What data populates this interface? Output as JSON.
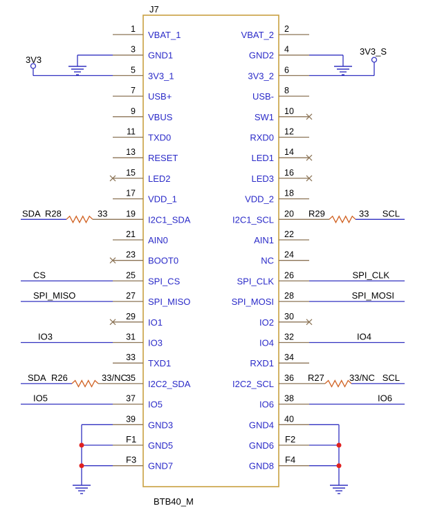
{
  "component": {
    "ref": "J7",
    "value": "BTB40_M",
    "left_pins": [
      {
        "num": "1",
        "name": "VBAT_1"
      },
      {
        "num": "3",
        "name": "GND1"
      },
      {
        "num": "5",
        "name": "3V3_1"
      },
      {
        "num": "7",
        "name": "USB+"
      },
      {
        "num": "9",
        "name": "VBUS"
      },
      {
        "num": "11",
        "name": "TXD0"
      },
      {
        "num": "13",
        "name": "RESET"
      },
      {
        "num": "15",
        "name": "LED2"
      },
      {
        "num": "17",
        "name": "VDD_1"
      },
      {
        "num": "19",
        "name": "I2C1_SDA"
      },
      {
        "num": "21",
        "name": "AIN0"
      },
      {
        "num": "23",
        "name": "BOOT0"
      },
      {
        "num": "25",
        "name": "SPI_CS"
      },
      {
        "num": "27",
        "name": "SPI_MISO"
      },
      {
        "num": "29",
        "name": "IO1"
      },
      {
        "num": "31",
        "name": "IO3"
      },
      {
        "num": "33",
        "name": "TXD1"
      },
      {
        "num": "35",
        "name": "I2C2_SDA"
      },
      {
        "num": "37",
        "name": "IO5"
      },
      {
        "num": "39",
        "name": "GND3"
      },
      {
        "num": "",
        "name": "GND5"
      },
      {
        "num": "",
        "name": "GND7"
      }
    ],
    "right_pins": [
      {
        "num": "2",
        "name": "VBAT_2"
      },
      {
        "num": "4",
        "name": "GND2"
      },
      {
        "num": "6",
        "name": "3V3_2"
      },
      {
        "num": "8",
        "name": "USB-"
      },
      {
        "num": "10",
        "name": "SW1"
      },
      {
        "num": "12",
        "name": "RXD0"
      },
      {
        "num": "14",
        "name": "LED1"
      },
      {
        "num": "16",
        "name": "LED3"
      },
      {
        "num": "18",
        "name": "VDD_2"
      },
      {
        "num": "20",
        "name": "I2C1_SCL"
      },
      {
        "num": "22",
        "name": "AIN1"
      },
      {
        "num": "24",
        "name": "NC"
      },
      {
        "num": "26",
        "name": "SPI_CLK"
      },
      {
        "num": "28",
        "name": "SPI_MOSI"
      },
      {
        "num": "30",
        "name": "IO2"
      },
      {
        "num": "32",
        "name": "IO4"
      },
      {
        "num": "34",
        "name": "RXD1"
      },
      {
        "num": "36",
        "name": "I2C2_SCL"
      },
      {
        "num": "38",
        "name": "IO6"
      },
      {
        "num": "40",
        "name": "GND4"
      },
      {
        "num": "",
        "name": "GND6"
      },
      {
        "num": "",
        "name": "GND8"
      }
    ]
  },
  "power_labels": {
    "left": "3V3",
    "right": "3V3_S"
  },
  "nets": {
    "cs": "CS",
    "spi_miso": "SPI_MISO",
    "io3": "IO3",
    "io5": "IO5",
    "sda1": "SDA",
    "sda2": "SDA",
    "spi_clk": "SPI_CLK",
    "spi_mosi": "SPI_MOSI",
    "io4": "IO4",
    "io6": "IO6",
    "scl1": "SCL",
    "scl2": "SCL"
  },
  "resistors": {
    "r28": {
      "ref": "R28",
      "value": "33"
    },
    "r29": {
      "ref": "R29",
      "value": "33"
    },
    "r26": {
      "ref": "R26",
      "value": "33/NC"
    },
    "r27": {
      "ref": "R27",
      "value": "33/NC"
    }
  },
  "fuses": {
    "f1": "F1",
    "f2": "F2",
    "f3": "F3",
    "f4": "F4"
  },
  "colors": {
    "body_outline": "#c8a040",
    "pin_line": "#8b7355",
    "wire": "#3030c0",
    "pin_name": "#2a2ac8",
    "junction": "#e02020",
    "text": "#000000"
  }
}
